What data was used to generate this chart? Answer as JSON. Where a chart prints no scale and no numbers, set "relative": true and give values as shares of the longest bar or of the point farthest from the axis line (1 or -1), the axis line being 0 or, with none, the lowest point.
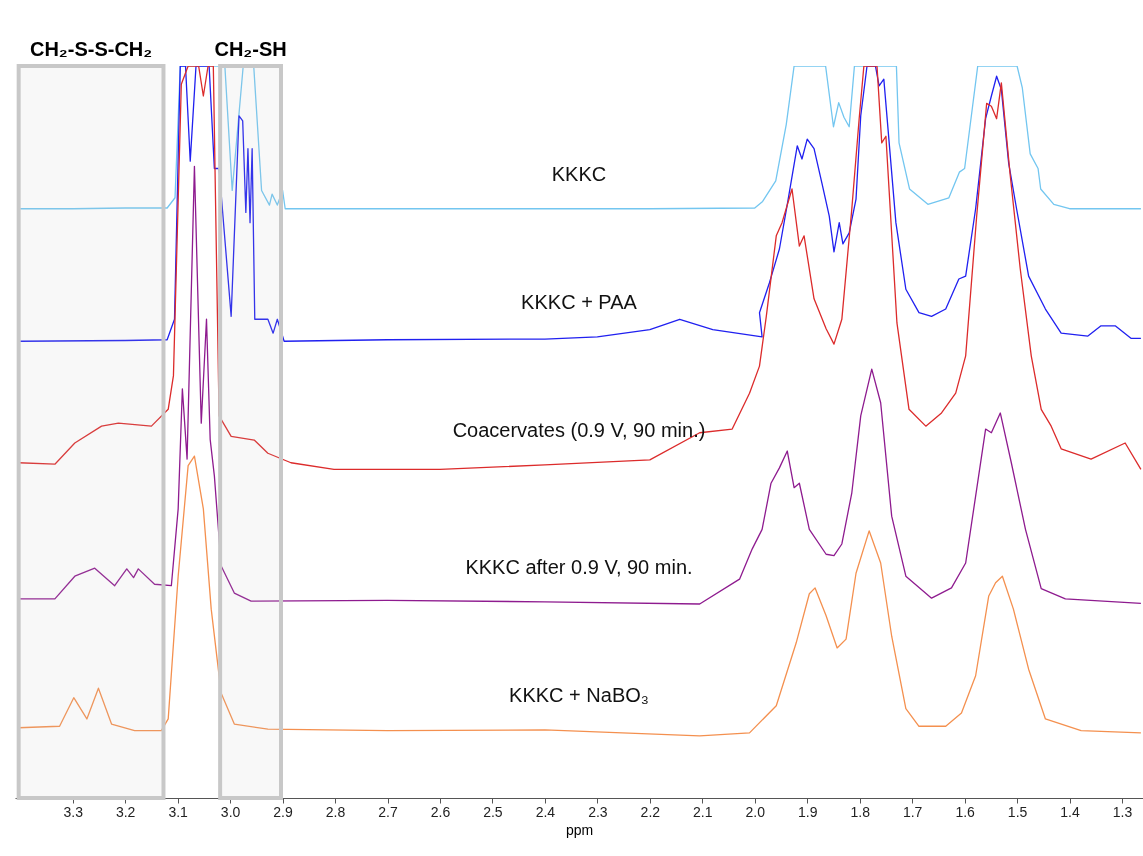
{
  "chart_data": {
    "type": "line",
    "relative": true,
    "xlabel": "ppm",
    "xlim": [
      3.41,
      1.26
    ],
    "xticks": [
      3.3,
      3.2,
      3.1,
      {
        "value": 3.0,
        "label": "3.0"
      },
      2.9,
      2.8,
      2.7,
      2.6,
      2.5,
      2.4,
      2.3,
      2.2,
      2.1,
      {
        "value": 2.0,
        "label": "2.0"
      },
      1.9,
      1.8,
      1.7,
      1.6,
      1.5,
      1.4,
      1.3
    ],
    "grid": false,
    "legend": false,
    "marker": "none",
    "line_style": "solid",
    "bands": [
      {
        "axis": "x",
        "from": 3.019,
        "to": 2.903,
        "label": "CH₂-SH",
        "color": "#c8c8c8"
      },
      {
        "axis": "x",
        "from": 3.403,
        "to": 3.127,
        "label": "CH₂-S-S-CH₂",
        "color": "#c8c8c8"
      }
    ],
    "series": [
      {
        "name": "KKKC",
        "color": "#73c6f0",
        "x": [
          3.4,
          3.3,
          3.2,
          3.12,
          3.105,
          3.095,
          3.01,
          2.996,
          2.975,
          2.955,
          2.94,
          2.925,
          2.92,
          2.91,
          2.9,
          2.895,
          2.8,
          2.5,
          2.2,
          2.0,
          1.985,
          1.96,
          1.94,
          1.925,
          1.865,
          1.85,
          1.84,
          1.83,
          1.82,
          1.81,
          1.73,
          1.725,
          1.705,
          1.67,
          1.63,
          1.61,
          1.6,
          1.575,
          1.5,
          1.49,
          1.475,
          1.46,
          1.455,
          1.43,
          1.4,
          1.3,
          1.264
        ],
        "values": [
          0.805,
          0.805,
          0.806,
          0.806,
          0.82,
          1.0,
          1.0,
          0.83,
          1.0,
          1.0,
          0.83,
          0.81,
          0.825,
          0.81,
          0.83,
          0.805,
          0.805,
          0.805,
          0.805,
          0.806,
          0.815,
          0.843,
          0.92,
          1.0,
          1.0,
          0.917,
          0.95,
          0.93,
          0.917,
          1.0,
          1.0,
          0.895,
          0.832,
          0.811,
          0.82,
          0.855,
          0.86,
          1.0,
          1.0,
          0.97,
          0.88,
          0.86,
          0.832,
          0.811,
          0.805,
          0.805,
          0.805
        ]
      },
      {
        "name": "KKKC + PAA",
        "color": "#2020f0",
        "x": [
          3.4,
          3.2,
          3.12,
          3.106,
          3.095,
          3.085,
          3.076,
          3.065,
          3.04,
          3.03,
          3.021,
          2.998,
          2.983,
          2.976,
          2.97,
          2.966,
          2.962,
          2.958,
          2.953,
          2.945,
          2.928,
          2.918,
          2.91,
          2.897,
          2.7,
          2.4,
          2.3,
          2.2,
          2.143,
          2.08,
          1.986,
          1.991,
          1.972,
          1.953,
          1.938,
          1.919,
          1.91,
          1.9,
          1.887,
          1.872,
          1.858,
          1.849,
          1.839,
          1.832,
          1.82,
          1.807,
          1.798,
          1.786,
          1.77,
          1.763,
          1.754,
          1.731,
          1.712,
          1.687,
          1.663,
          1.636,
          1.611,
          1.598,
          1.579,
          1.56,
          1.549,
          1.539,
          1.53,
          1.516,
          1.501,
          1.478,
          1.446,
          1.416,
          1.365,
          1.34,
          1.313,
          1.283,
          1.264
        ],
        "values": [
          0.624,
          0.625,
          0.626,
          0.654,
          1.0,
          1.0,
          0.87,
          1.0,
          1.0,
          0.86,
          0.86,
          0.658,
          0.932,
          0.925,
          0.8,
          0.887,
          0.786,
          0.887,
          0.654,
          0.654,
          0.654,
          0.635,
          0.654,
          0.624,
          0.626,
          0.627,
          0.63,
          0.64,
          0.654,
          0.64,
          0.63,
          0.663,
          0.704,
          0.75,
          0.811,
          0.891,
          0.873,
          0.9,
          0.887,
          0.84,
          0.795,
          0.746,
          0.786,
          0.757,
          0.772,
          0.818,
          0.932,
          1.0,
          1.0,
          0.973,
          0.982,
          0.786,
          0.695,
          0.663,
          0.658,
          0.668,
          0.709,
          0.713,
          0.805,
          0.928,
          0.959,
          0.986,
          0.968,
          0.867,
          0.805,
          0.713,
          0.668,
          0.635,
          0.631,
          0.645,
          0.645,
          0.628,
          0.628
        ]
      },
      {
        "name": "Coacervates (0.9 V, 90 min.)",
        "color": "#dc2b2b",
        "x": [
          3.403,
          3.334,
          3.296,
          3.245,
          3.213,
          3.15,
          3.118,
          3.108,
          3.093,
          3.08,
          3.06,
          3.051,
          3.042,
          3.032,
          3.021,
          2.998,
          2.954,
          2.928,
          2.884,
          2.802,
          2.6,
          2.4,
          2.2,
          2.105,
          2.043,
          2.01,
          1.991,
          1.978,
          1.959,
          1.948,
          1.929,
          1.915,
          1.906,
          1.887,
          1.864,
          1.849,
          1.834,
          1.815,
          1.801,
          1.792,
          1.767,
          1.758,
          1.75,
          1.729,
          1.706,
          1.674,
          1.644,
          1.617,
          1.598,
          1.577,
          1.558,
          1.549,
          1.539,
          1.53,
          1.513,
          1.494,
          1.473,
          1.454,
          1.435,
          1.416,
          1.359,
          1.294,
          1.264
        ],
        "values": [
          0.458,
          0.456,
          0.485,
          0.508,
          0.512,
          0.508,
          0.531,
          0.577,
          0.975,
          1.0,
          1.0,
          0.959,
          1.0,
          1.0,
          0.522,
          0.494,
          0.489,
          0.471,
          0.458,
          0.449,
          0.449,
          0.455,
          0.462,
          0.499,
          0.504,
          0.553,
          0.59,
          0.658,
          0.768,
          0.786,
          0.832,
          0.754,
          0.768,
          0.682,
          0.641,
          0.62,
          0.654,
          0.805,
          0.928,
          1.0,
          1.0,
          0.895,
          0.904,
          0.649,
          0.531,
          0.508,
          0.526,
          0.553,
          0.604,
          0.795,
          0.949,
          0.945,
          0.928,
          0.977,
          0.85,
          0.723,
          0.604,
          0.531,
          0.508,
          0.477,
          0.463,
          0.485,
          0.449
        ]
      },
      {
        "name": "KKKC after 0.9 V, 90 min.",
        "color": "#8e1b8f",
        "x": [
          3.403,
          3.334,
          3.296,
          3.258,
          3.22,
          3.197,
          3.184,
          3.175,
          3.144,
          3.112,
          3.099,
          3.091,
          3.082,
          3.068,
          3.055,
          3.045,
          3.038,
          3.03,
          3.017,
          2.992,
          2.96,
          2.7,
          2.4,
          2.105,
          2.029,
          2.005,
          1.986,
          1.969,
          1.953,
          1.938,
          1.925,
          1.915,
          1.896,
          1.864,
          1.849,
          1.834,
          1.815,
          1.798,
          1.777,
          1.76,
          1.739,
          1.712,
          1.663,
          1.625,
          1.598,
          1.56,
          1.549,
          1.532,
          1.511,
          1.484,
          1.454,
          1.408,
          1.264
        ],
        "values": [
          0.272,
          0.272,
          0.303,
          0.314,
          0.29,
          0.313,
          0.301,
          0.313,
          0.292,
          0.29,
          0.395,
          0.559,
          0.463,
          0.863,
          0.512,
          0.654,
          0.49,
          0.44,
          0.317,
          0.28,
          0.269,
          0.27,
          0.268,
          0.265,
          0.299,
          0.34,
          0.367,
          0.43,
          0.451,
          0.474,
          0.424,
          0.43,
          0.367,
          0.333,
          0.331,
          0.347,
          0.417,
          0.522,
          0.586,
          0.54,
          0.385,
          0.303,
          0.273,
          0.287,
          0.321,
          0.504,
          0.499,
          0.526,
          0.458,
          0.367,
          0.286,
          0.272,
          0.266
        ]
      },
      {
        "name": "KKKC + NaBO₃",
        "color": "#f4904f",
        "x": [
          3.403,
          3.325,
          3.298,
          3.273,
          3.251,
          3.226,
          3.182,
          3.131,
          3.118,
          3.099,
          3.08,
          3.068,
          3.051,
          3.036,
          3.017,
          2.992,
          2.928,
          2.7,
          2.4,
          2.105,
          2.01,
          1.959,
          1.921,
          1.896,
          1.885,
          1.864,
          1.843,
          1.826,
          1.807,
          1.782,
          1.76,
          1.739,
          1.712,
          1.687,
          1.636,
          1.606,
          1.579,
          1.554,
          1.541,
          1.528,
          1.507,
          1.478,
          1.446,
          1.378,
          1.264
        ],
        "values": [
          0.096,
          0.098,
          0.137,
          0.108,
          0.15,
          0.101,
          0.092,
          0.092,
          0.108,
          0.303,
          0.454,
          0.467,
          0.395,
          0.258,
          0.143,
          0.101,
          0.094,
          0.092,
          0.093,
          0.085,
          0.089,
          0.126,
          0.212,
          0.279,
          0.287,
          0.249,
          0.205,
          0.217,
          0.307,
          0.365,
          0.321,
          0.221,
          0.122,
          0.098,
          0.098,
          0.116,
          0.167,
          0.276,
          0.294,
          0.303,
          0.258,
          0.176,
          0.108,
          0.092,
          0.089
        ]
      }
    ]
  }
}
